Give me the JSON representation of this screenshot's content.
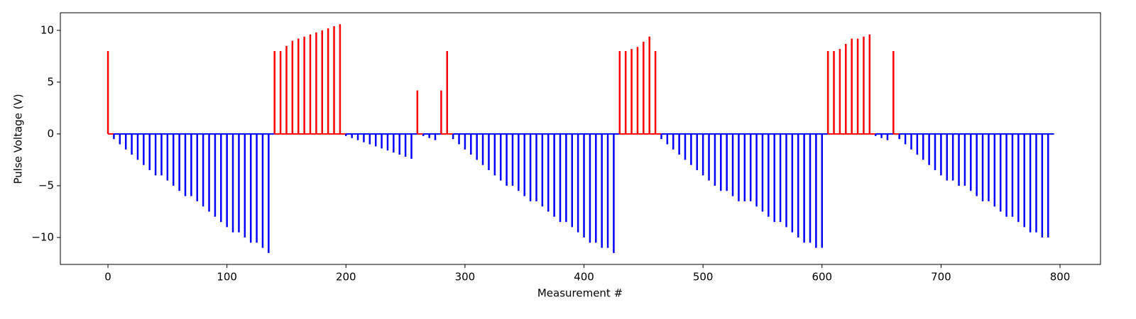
{
  "chart_data": {
    "type": "stem",
    "xlabel": "Measurement #",
    "ylabel": "Pulse Voltage (V)",
    "positive_color": "#ff0000",
    "negative_color": "#0000ff",
    "xlim": [
      -40,
      834
    ],
    "ylim": [
      -12.6,
      11.7
    ],
    "xticks": [
      0,
      100,
      200,
      300,
      400,
      500,
      600,
      700,
      800
    ],
    "yticks": [
      {
        "value": -10,
        "label": "−10"
      },
      {
        "value": -5,
        "label": "−5"
      },
      0,
      5,
      10
    ],
    "x": [
      0,
      5,
      10,
      15,
      20,
      25,
      30,
      35,
      40,
      45,
      50,
      55,
      60,
      65,
      70,
      75,
      80,
      85,
      90,
      95,
      100,
      105,
      110,
      115,
      120,
      125,
      130,
      135,
      140,
      145,
      150,
      155,
      160,
      165,
      170,
      175,
      180,
      185,
      190,
      195,
      200,
      205,
      210,
      215,
      220,
      225,
      230,
      235,
      240,
      245,
      250,
      255,
      260,
      265,
      270,
      275,
      280,
      285,
      290,
      295,
      300,
      305,
      310,
      315,
      320,
      325,
      330,
      335,
      340,
      345,
      350,
      355,
      360,
      365,
      370,
      375,
      380,
      385,
      390,
      395,
      400,
      405,
      410,
      415,
      420,
      425,
      430,
      435,
      440,
      445,
      450,
      455,
      460,
      465,
      470,
      475,
      480,
      485,
      490,
      495,
      500,
      505,
      510,
      515,
      520,
      525,
      530,
      535,
      540,
      545,
      550,
      555,
      560,
      565,
      570,
      575,
      580,
      585,
      590,
      595,
      600,
      605,
      610,
      615,
      620,
      625,
      630,
      635,
      640,
      645,
      650,
      655,
      660,
      665,
      670,
      675,
      680,
      685,
      690,
      695,
      700,
      705,
      710,
      715,
      720,
      725,
      730,
      735,
      740,
      745,
      750,
      755,
      760,
      765,
      770,
      775,
      780,
      785,
      790
    ],
    "values": [
      8,
      -0.5,
      -1,
      -1.5,
      -2,
      -2.5,
      -3,
      -3.5,
      -4,
      -4,
      -4.5,
      -5,
      -5.5,
      -6,
      -6,
      -6.5,
      -7,
      -7.5,
      -8,
      -8.5,
      -9,
      -9.5,
      -9.5,
      -10,
      -10.5,
      -10.5,
      -11,
      -11.5,
      8,
      8,
      8.5,
      9,
      9.2,
      9.4,
      9.6,
      9.8,
      10,
      10.2,
      10.4,
      10.6,
      -0.2,
      -0.4,
      -0.6,
      -0.8,
      -1,
      -1.2,
      -1.4,
      -1.6,
      -1.8,
      -2,
      -2.2,
      -2.4,
      4.2,
      -0.2,
      -0.4,
      -0.6,
      4.2,
      8,
      -0.5,
      -1,
      -1.5,
      -2,
      -2.5,
      -3,
      -3.5,
      -4,
      -4.5,
      -5,
      -5,
      -5.5,
      -6,
      -6.5,
      -6.5,
      -7,
      -7.5,
      -8,
      -8.5,
      -8.5,
      -9,
      -9.5,
      -10,
      -10.5,
      -10.5,
      -11,
      -11,
      -11.5,
      8,
      8,
      8.2,
      8.4,
      8.9,
      9.4,
      8,
      -0.5,
      -1,
      -1.5,
      -2,
      -2.5,
      -3,
      -3.5,
      -4,
      -4.5,
      -5,
      -5.5,
      -5.5,
      -6,
      -6.5,
      -6.5,
      -6.5,
      -7,
      -7.5,
      -8,
      -8.5,
      -8.5,
      -9,
      -9.5,
      -10,
      -10.5,
      -10.5,
      -11,
      -11,
      8,
      8,
      8.2,
      8.7,
      9.2,
      9.2,
      9.4,
      9.6,
      -0.2,
      -0.4,
      -0.6,
      8,
      -0.5,
      -1,
      -1.5,
      -2,
      -2.5,
      -3,
      -3.5,
      -4,
      -4.5,
      -4.5,
      -5,
      -5,
      -5.5,
      -6,
      -6.5,
      -6.5,
      -7,
      -7.5,
      -8,
      -8,
      -8.5,
      -9,
      -9.5,
      -9.5,
      -10,
      -10
    ]
  }
}
